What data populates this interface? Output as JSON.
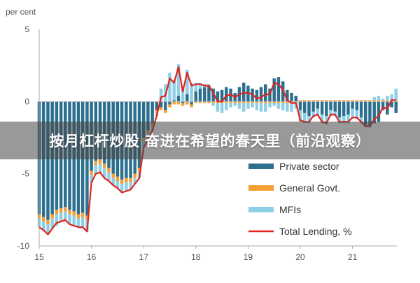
{
  "banner": {
    "text": "按月杠杆炒股 奋进在希望的春天里（前沿观察）"
  },
  "colors": {
    "private_sector": "#2c6f8f",
    "general_govt": "#f4a037",
    "mfis": "#8fcfe6",
    "total_lending": "#e1231b",
    "axis_text": "#555555",
    "grid": "#d9d9d9"
  },
  "chart_data": {
    "type": "bar",
    "stacked": true,
    "ylabel": "per cent",
    "ylim": [
      -10,
      5
    ],
    "yticks": [
      5,
      0,
      -5,
      -10
    ],
    "x_tick_labels": [
      "15",
      "16",
      "17",
      "18",
      "19",
      "20",
      "21"
    ],
    "x_tick_positions": [
      2015,
      2016,
      2017,
      2018,
      2019,
      2020,
      2021
    ],
    "x_range": [
      2015,
      2021.85
    ],
    "legend_position": "bottom-right",
    "grid": false,
    "x": [
      2015.0,
      2015.083,
      2015.167,
      2015.25,
      2015.333,
      2015.417,
      2015.5,
      2015.583,
      2015.667,
      2015.75,
      2015.833,
      2015.917,
      2016.0,
      2016.083,
      2016.167,
      2016.25,
      2016.333,
      2016.417,
      2016.5,
      2016.583,
      2016.667,
      2016.75,
      2016.833,
      2016.917,
      2017.0,
      2017.083,
      2017.167,
      2017.25,
      2017.333,
      2017.417,
      2017.5,
      2017.583,
      2017.667,
      2017.75,
      2017.833,
      2017.917,
      2018.0,
      2018.083,
      2018.167,
      2018.25,
      2018.333,
      2018.417,
      2018.5,
      2018.583,
      2018.667,
      2018.75,
      2018.833,
      2018.917,
      2019.0,
      2019.083,
      2019.167,
      2019.25,
      2019.333,
      2019.417,
      2019.5,
      2019.583,
      2019.667,
      2019.75,
      2019.833,
      2019.917,
      2020.0,
      2020.083,
      2020.167,
      2020.25,
      2020.333,
      2020.417,
      2020.5,
      2020.583,
      2020.667,
      2020.75,
      2020.833,
      2020.917,
      2021.0,
      2021.083,
      2021.167,
      2021.25,
      2021.333,
      2021.417,
      2021.5,
      2021.583,
      2021.667,
      2021.75,
      2021.833
    ],
    "series": [
      {
        "name": "Private sector",
        "kind": "bar",
        "values": [
          -7.8,
          -8.0,
          -8.2,
          -7.8,
          -7.5,
          -7.4,
          -7.3,
          -7.5,
          -7.6,
          -7.8,
          -7.7,
          -7.9,
          -4.8,
          -4.1,
          -4.0,
          -4.3,
          -4.6,
          -5.0,
          -5.2,
          -5.4,
          -5.3,
          -5.3,
          -5.0,
          -4.6,
          -2.5,
          -2.0,
          -1.5,
          -0.6,
          -0.4,
          -0.6,
          -0.2,
          0.1,
          0.4,
          -0.1,
          0.5,
          -0.2,
          0.7,
          0.9,
          1.0,
          1.1,
          0.9,
          0.7,
          0.8,
          1.0,
          0.9,
          0.6,
          1.0,
          1.3,
          1.1,
          0.9,
          0.8,
          1.0,
          1.2,
          0.9,
          1.6,
          1.7,
          1.4,
          0.8,
          0.6,
          0.4,
          -0.6,
          -0.8,
          -1.0,
          -0.7,
          -0.5,
          -0.9,
          -1.0,
          -0.6,
          -0.7,
          -1.1,
          -1.0,
          -0.9,
          -0.5,
          -0.6,
          -1.1,
          -1.6,
          -1.7,
          -1.5,
          -1.4,
          -0.6,
          -0.9,
          -0.4,
          -0.8
        ]
      },
      {
        "name": "General Govt.",
        "kind": "bar",
        "values": [
          -0.3,
          -0.3,
          -0.3,
          -0.3,
          -0.3,
          -0.3,
          -0.3,
          -0.3,
          -0.3,
          -0.3,
          -0.3,
          -0.3,
          -0.3,
          -0.3,
          -0.3,
          -0.3,
          -0.3,
          -0.3,
          -0.3,
          -0.3,
          -0.3,
          -0.3,
          -0.3,
          -0.3,
          -0.2,
          -0.2,
          -0.2,
          -0.2,
          -0.2,
          -0.2,
          -0.2,
          -0.2,
          -0.2,
          -0.2,
          -0.2,
          -0.2,
          -0.1,
          -0.1,
          -0.1,
          -0.1,
          -0.1,
          -0.1,
          -0.1,
          -0.1,
          -0.1,
          -0.1,
          -0.1,
          -0.1,
          -0.1,
          -0.1,
          -0.1,
          -0.1,
          -0.1,
          -0.1,
          -0.1,
          -0.1,
          -0.1,
          -0.1,
          -0.1,
          -0.1,
          0.1,
          0.1,
          0.1,
          0.1,
          0.1,
          0.1,
          0.1,
          0.1,
          0.1,
          0.1,
          0.1,
          0.1,
          0.1,
          0.1,
          0.1,
          0.1,
          0.1,
          0.1,
          0.1,
          0.1,
          0.1,
          0.1,
          0.1
        ]
      },
      {
        "name": "MFIs",
        "kind": "bar",
        "values": [
          -0.6,
          -0.6,
          -0.7,
          -0.7,
          -0.8,
          -0.6,
          -0.6,
          -0.7,
          -0.7,
          -0.6,
          -0.7,
          -0.8,
          -0.5,
          -0.6,
          -0.6,
          -0.7,
          -0.6,
          -0.5,
          -0.5,
          -0.6,
          -0.6,
          -0.5,
          -0.4,
          -0.4,
          -0.5,
          -0.4,
          -0.3,
          -0.2,
          0.9,
          1.2,
          2.0,
          1.4,
          2.2,
          1.0,
          1.7,
          1.3,
          0.6,
          0.4,
          0.2,
          0.1,
          -0.2,
          -0.6,
          -0.7,
          -0.5,
          -0.3,
          -0.2,
          -0.4,
          -0.6,
          -0.4,
          -0.3,
          -0.5,
          -0.6,
          -0.6,
          -0.3,
          -0.2,
          -0.4,
          -0.5,
          -0.6,
          -0.6,
          -0.4,
          -0.8,
          -0.7,
          -0.5,
          -0.4,
          -0.5,
          -0.6,
          -0.6,
          -0.4,
          -0.3,
          -0.4,
          -0.5,
          -0.6,
          -0.7,
          -0.6,
          -0.4,
          -0.2,
          -0.1,
          0.2,
          0.3,
          0.1,
          0.3,
          0.4,
          0.8
        ]
      },
      {
        "name": "Total Lending, %",
        "kind": "line",
        "values": [
          -8.7,
          -8.9,
          -9.2,
          -8.8,
          -8.4,
          -8.3,
          -8.2,
          -8.5,
          -8.6,
          -8.7,
          -8.7,
          -9.0,
          -5.6,
          -5.0,
          -4.9,
          -5.3,
          -5.5,
          -5.8,
          -6.0,
          -6.3,
          -6.2,
          -6.1,
          -5.7,
          -5.3,
          -3.2,
          -2.6,
          -2.0,
          -1.0,
          0.3,
          0.4,
          1.6,
          1.3,
          2.4,
          0.7,
          2.0,
          1.1,
          1.2,
          1.2,
          1.1,
          1.1,
          0.6,
          0.0,
          0.0,
          0.4,
          0.5,
          0.3,
          0.5,
          0.6,
          0.6,
          0.5,
          0.2,
          0.3,
          0.5,
          0.5,
          1.3,
          1.2,
          0.8,
          0.1,
          -0.1,
          -0.1,
          -1.3,
          -1.4,
          -1.4,
          -1.0,
          -0.9,
          -1.4,
          -1.5,
          -0.9,
          -0.9,
          -1.4,
          -1.4,
          -1.4,
          -1.1,
          -1.1,
          -1.4,
          -1.7,
          -1.7,
          -1.2,
          -1.0,
          -0.4,
          -0.5,
          0.1,
          0.1
        ]
      }
    ]
  }
}
